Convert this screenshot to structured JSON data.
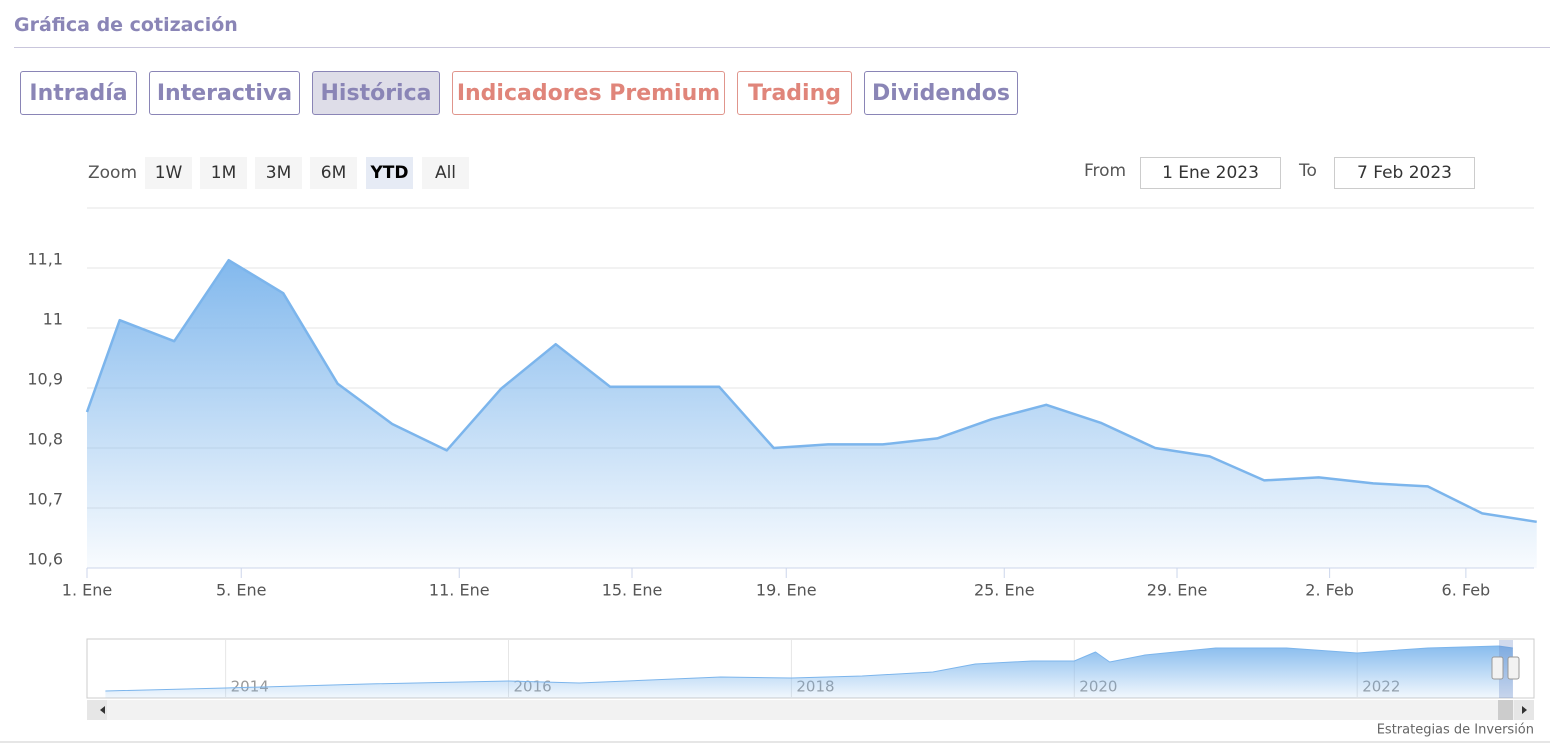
{
  "header": {
    "title": "Gráfica de cotización"
  },
  "tabs": [
    "Intradía",
    "Interactiva",
    "Histórica",
    "Indicadores Premium",
    "Trading",
    "Dividendos"
  ],
  "zoom": {
    "label": "Zoom",
    "buttons": [
      "1W",
      "1M",
      "3M",
      "6M",
      "YTD",
      "All"
    ]
  },
  "range": {
    "from_label": "From",
    "from": "1 Ene 2023",
    "to_label": "To",
    "to": "7 Feb 2023"
  },
  "credit": "Estrategias de Inversión",
  "chart_data": [
    {
      "type": "area",
      "color": "#7cb5ec",
      "grid": true,
      "x": [
        0,
        0.6,
        1.6,
        2.6,
        3.6,
        4.6,
        5.6,
        6.6,
        7.6,
        8.6,
        9.6,
        10.6,
        11.6,
        12.6,
        13.6,
        14.6,
        15.6,
        16.6,
        17.6,
        18.6,
        19.6,
        20.6,
        21.6,
        22.6,
        23.6,
        24.6,
        25.6,
        26.6
      ],
      "values": [
        10.86,
        11.013,
        10.978,
        11.113,
        11.058,
        10.907,
        10.84,
        10.796,
        10.899,
        10.973,
        10.902,
        10.902,
        10.902,
        10.8,
        10.806,
        10.806,
        10.816,
        10.848,
        10.872,
        10.842,
        10.8,
        10.786,
        10.746,
        10.751,
        10.741,
        10.736,
        10.691,
        10.677
      ],
      "xlim": [
        0,
        26.55
      ],
      "xticks": [
        {
          "value": 0,
          "label": "1. Ene"
        },
        {
          "value": 2.83,
          "label": "5. Ene"
        },
        {
          "value": 6.83,
          "label": "11. Ene"
        },
        {
          "value": 10,
          "label": "15. Ene"
        },
        {
          "value": 12.83,
          "label": "19. Ene"
        },
        {
          "value": 16.83,
          "label": "25. Ene"
        },
        {
          "value": 20,
          "label": "29. Ene"
        },
        {
          "value": 22.8,
          "label": "2. Feb"
        },
        {
          "value": 25.3,
          "label": "6. Feb"
        }
      ],
      "ylim": [
        10.6,
        11.2
      ],
      "yticks": [
        {
          "value": 10.6,
          "label": "10,6"
        },
        {
          "value": 10.7,
          "label": "10,7"
        },
        {
          "value": 10.8,
          "label": "10,8"
        },
        {
          "value": 10.9,
          "label": "10,9"
        },
        11,
        {
          "value": 11.1,
          "label": "11,1"
        }
      ]
    },
    {
      "type": "area",
      "color": "#7cb5ec",
      "grid": true,
      "x": [
        2013.15,
        2014,
        2015,
        2016,
        2016.5,
        2017,
        2017.5,
        2018,
        2018.5,
        2019,
        2019.3,
        2019.7,
        2020,
        2020.15,
        2020.25,
        2020.5,
        2021,
        2021.5,
        2022,
        2022.5,
        2023,
        2023.1
      ],
      "values": [
        7,
        10,
        14,
        17,
        15,
        18,
        21,
        20,
        22,
        26,
        34,
        37,
        37,
        46,
        36,
        43,
        50,
        50,
        45,
        50,
        52,
        50
      ],
      "xlim": [
        2013.02,
        2023.25
      ],
      "xticks": [
        2014,
        2016,
        2018,
        2020,
        2022
      ],
      "ylim": [
        0,
        58
      ]
    }
  ]
}
